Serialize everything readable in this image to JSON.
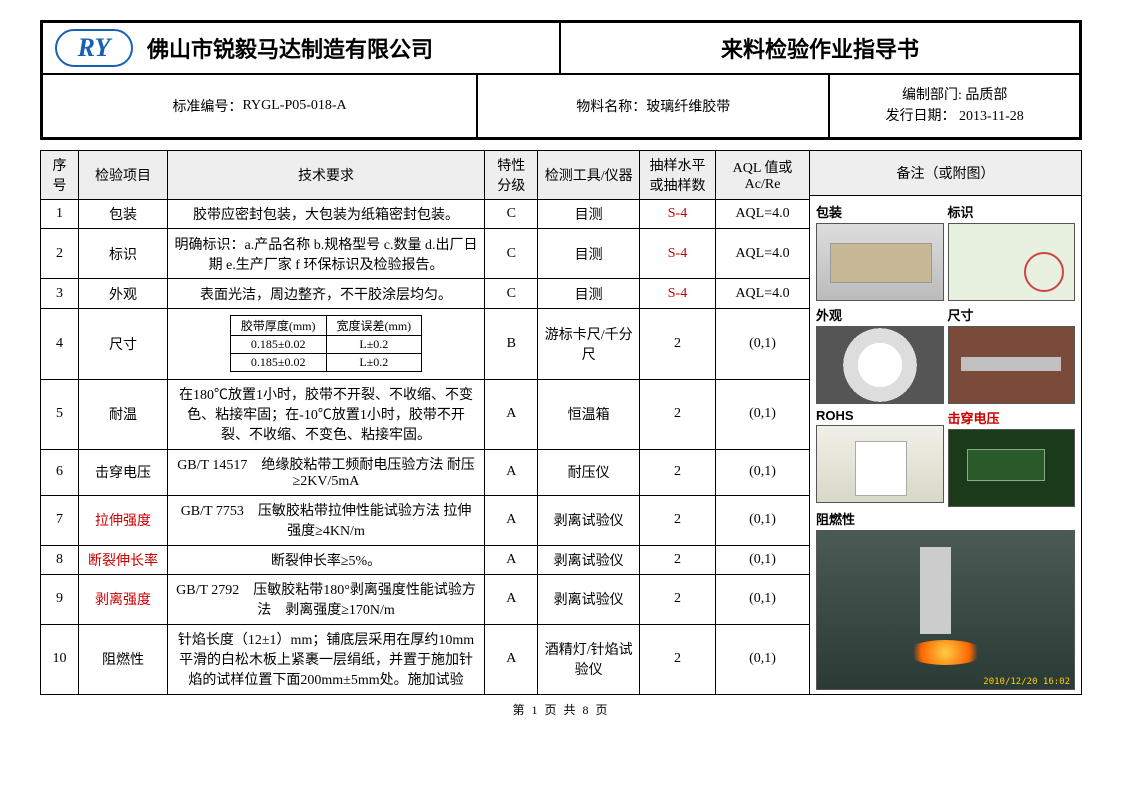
{
  "header": {
    "logo_text": "RY",
    "company_name": "佛山市锐毅马达制造有限公司",
    "doc_title": "来料检验作业指导书",
    "std_no_label": "标准编号：",
    "std_no": "RYGL-P05-018-A",
    "material_label": "物料名称：",
    "material_name": "玻璃纤维胶带",
    "dept_label": "编制部门:",
    "dept": "品质部",
    "issue_label": "发行日期：",
    "issue_date": "2013-11-28"
  },
  "columns": {
    "idx": "序号",
    "item": "检验项目",
    "req": "技术要求",
    "grade": "特性分级",
    "tool": "检测工具/仪器",
    "sample": "抽样水平或抽样数",
    "aql": "AQL 值或 Ac/Re",
    "notes": "备注（或附图）"
  },
  "rows": [
    {
      "idx": "1",
      "item": "包装",
      "item_red": false,
      "req_text": "胶带应密封包装，大包装为纸箱密封包装。",
      "grade": "C",
      "tool": "目测",
      "sample": "S-4",
      "sample_red": true,
      "aql": "AQL=4.0"
    },
    {
      "idx": "2",
      "item": "标识",
      "item_red": false,
      "req_text": "明确标识：a.产品名称 b.规格型号 c.数量 d.出厂日期 e.生产厂家 f 环保标识及检验报告。",
      "grade": "C",
      "tool": "目测",
      "sample": "S-4",
      "sample_red": true,
      "aql": "AQL=4.0"
    },
    {
      "idx": "3",
      "item": "外观",
      "item_red": false,
      "req_text": "表面光洁，周边整齐，不干胶涂层均匀。",
      "grade": "C",
      "tool": "目测",
      "sample": "S-4",
      "sample_red": true,
      "aql": "AQL=4.0"
    },
    {
      "idx": "4",
      "item": "尺寸",
      "item_red": false,
      "req_text": "",
      "grade": "B",
      "tool": "游标卡尺/千分尺",
      "sample": "2",
      "sample_red": false,
      "aql": "(0,1)",
      "sub_table": {
        "h1": "胶带厚度(mm)",
        "h2": "宽度误差(mm)",
        "r1c1": "0.185±0.02",
        "r1c2": "L±0.2",
        "r2c1": "0.185±0.02",
        "r2c2": "L±0.2"
      }
    },
    {
      "idx": "5",
      "item": "耐温",
      "item_red": false,
      "req_text": "在180℃放置1小时，胶带不开裂、不收缩、不变色、粘接牢固；在-10℃放置1小时，胶带不开裂、不收缩、不变色、粘接牢固。",
      "grade": "A",
      "tool": "恒温箱",
      "sample": "2",
      "sample_red": false,
      "aql": "(0,1)"
    },
    {
      "idx": "6",
      "item": "击穿电压",
      "item_red": false,
      "req_text": "GB/T 14517　绝缘胶粘带工频耐电压验方法 耐压≥2KV/5mA",
      "grade": "A",
      "tool": "耐压仪",
      "sample": "2",
      "sample_red": false,
      "aql": "(0,1)"
    },
    {
      "idx": "7",
      "item": "拉伸强度",
      "item_red": true,
      "req_text": "GB/T 7753　压敏胶粘带拉伸性能试验方法 拉伸强度≥4KN/m",
      "grade": "A",
      "tool": "剥离试验仪",
      "sample": "2",
      "sample_red": false,
      "aql": "(0,1)"
    },
    {
      "idx": "8",
      "item": "断裂伸长率",
      "item_red": true,
      "req_text": "断裂伸长率≥5%。",
      "grade": "A",
      "tool": "剥离试验仪",
      "sample": "2",
      "sample_red": false,
      "aql": "(0,1)"
    },
    {
      "idx": "9",
      "item": "剥离强度",
      "item_red": true,
      "req_text": "GB/T 2792　压敏胶粘带180°剥离强度性能试验方法　剥离强度≥170N/m",
      "grade": "A",
      "tool": "剥离试验仪",
      "sample": "2",
      "sample_red": false,
      "aql": "(0,1)"
    },
    {
      "idx": "10",
      "item": "阻燃性",
      "item_red": false,
      "req_text": "针焰长度（12±1）mm；铺底层采用在厚约10mm平滑的白松木板上紧裹一层绢纸，并置于施加针焰的试样位置下面200mm±5mm处。施加试验",
      "grade": "A",
      "tool": "酒精灯/针焰试验仪",
      "sample": "2",
      "sample_red": false,
      "aql": "(0,1)"
    }
  ],
  "photos": {
    "l1": "包装",
    "l2": "标识",
    "l3": "外观",
    "l4": "尺寸",
    "l5": "ROHS",
    "l6": "击穿电压",
    "l7": "阻燃性",
    "flame_ts": "2010/12/20 16:02"
  },
  "footer": {
    "text": "第 1 页 共 8 页"
  }
}
